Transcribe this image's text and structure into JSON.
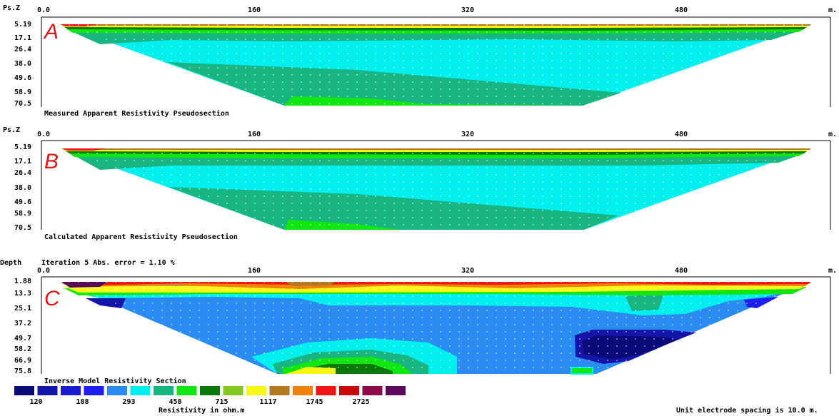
{
  "panels": [
    {
      "letter": "A",
      "depth_label": "Ps.Z",
      "caption": "Measured Apparent Resistivity Pseudosection",
      "iteration_text": "",
      "x_ticks": [
        "0.0",
        "160",
        "320",
        "480"
      ],
      "x_unit": "m.",
      "depth_ticks": [
        "5.19",
        "17.1",
        "26.4",
        "38.0",
        "49.6",
        "58.9",
        "70.5"
      ]
    },
    {
      "letter": "B",
      "depth_label": "Ps.Z",
      "caption": "Calculated Apparent Resistivity Pseudosection",
      "iteration_text": "",
      "x_ticks": [
        "0.0",
        "160",
        "320",
        "480"
      ],
      "x_unit": "m.",
      "depth_ticks": [
        "5.19",
        "17.1",
        "26.4",
        "38.0",
        "49.6",
        "58.9",
        "70.5"
      ]
    },
    {
      "letter": "C",
      "depth_label": "Depth",
      "caption": "Inverse Model Resistivity Section",
      "iteration_text": "Iteration 5 Abs. error = 1.10 %",
      "x_ticks": [
        "0.0",
        "160",
        "320",
        "480"
      ],
      "x_unit": "m.",
      "depth_ticks": [
        "1.88",
        "13.3",
        "25.1",
        "37.2",
        "49.7",
        "58.2",
        "66.9",
        "75.8"
      ]
    }
  ],
  "colorbar": {
    "colors": [
      "#0a0a78",
      "#1414a8",
      "#1c1cd0",
      "#1e1ef0",
      "#2a8cf0",
      "#00f0f0",
      "#18b482",
      "#10e610",
      "#0a780a",
      "#82c81e",
      "#f8f818",
      "#b4781e",
      "#f0820a",
      "#f01414",
      "#c80a0a",
      "#8c0a46",
      "#5a0a5a"
    ],
    "labels": [
      "120",
      "188",
      "293",
      "458",
      "715",
      "1117",
      "1745",
      "2725"
    ],
    "title": "Resistivity in ohm.m"
  },
  "footer": {
    "spacing_text": "Unit electrode spacing is 10.0 m."
  },
  "chart_data": [
    {
      "type": "heatmap",
      "title": "Measured Apparent Resistivity Pseudosection",
      "xlabel": "m.",
      "ylabel": "Ps.Z",
      "xlim": [
        0,
        580
      ],
      "ylim": [
        70.5,
        5.19
      ],
      "x_ticks": [
        0,
        160,
        320,
        480
      ],
      "y_ticks": [
        5.19,
        17.1,
        26.4,
        38.0,
        49.6,
        58.9,
        70.5
      ],
      "dominant_values_ohm_m": {
        "surface": 2725,
        "shallow": 715,
        "middle": 293,
        "deep": 458
      }
    },
    {
      "type": "heatmap",
      "title": "Calculated Apparent Resistivity Pseudosection",
      "xlabel": "m.",
      "ylabel": "Ps.Z",
      "xlim": [
        0,
        580
      ],
      "ylim": [
        70.5,
        5.19
      ],
      "x_ticks": [
        0,
        160,
        320,
        480
      ],
      "y_ticks": [
        5.19,
        17.1,
        26.4,
        38.0,
        49.6,
        58.9,
        70.5
      ],
      "dominant_values_ohm_m": {
        "surface": 2725,
        "shallow": 715,
        "middle": 293,
        "deep": 458
      }
    },
    {
      "type": "heatmap",
      "title": "Inverse Model Resistivity Section",
      "xlabel": "m.",
      "ylabel": "Depth",
      "xlim": [
        0,
        580
      ],
      "ylim": [
        75.8,
        1.88
      ],
      "x_ticks": [
        0,
        160,
        320,
        480
      ],
      "y_ticks": [
        1.88,
        13.3,
        25.1,
        37.2,
        49.7,
        58.2,
        66.9,
        75.8
      ],
      "iteration": 5,
      "abs_error_percent": 1.1,
      "dominant_values_ohm_m": {
        "surface": 2725,
        "upper": 458,
        "body": 188,
        "deep_low": 120,
        "deep_mid": 293
      }
    }
  ]
}
